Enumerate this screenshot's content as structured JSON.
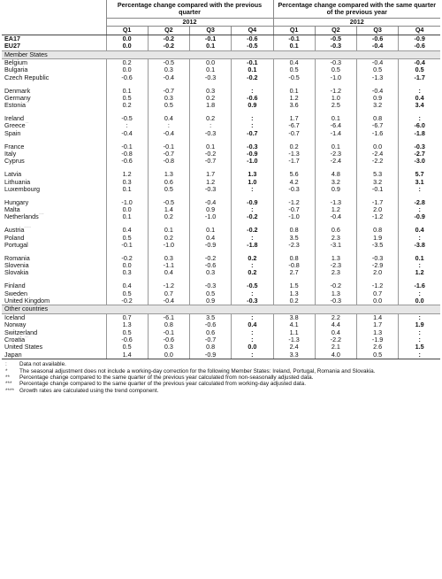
{
  "header": {
    "group1_title": "Percentage change compared with the previous quarter",
    "group2_title": "Percentage change compared with the same quarter of the previous year",
    "year": "2012",
    "quarters": [
      "Q1",
      "Q2",
      "Q3",
      "Q4"
    ]
  },
  "rows": [
    {
      "type": "agg",
      "country": "EA17",
      "qoq": [
        "0.0",
        "-0.2",
        "-0.1",
        "-0.6"
      ],
      "yoy": [
        "-0.1",
        "-0.5",
        "-0.6",
        "-0.9"
      ]
    },
    {
      "type": "agg",
      "country": "EU27",
      "qoq": [
        "0.0",
        "-0.2",
        "0.1",
        "-0.5"
      ],
      "yoy": [
        "0.1",
        "-0.3",
        "-0.4",
        "-0.6"
      ]
    },
    {
      "type": "section",
      "label": "Member States"
    },
    {
      "type": "data",
      "country": "Belgium",
      "qoq": [
        "0.2",
        "-0.5",
        "0.0",
        "-0.1"
      ],
      "yoy": [
        "0.4",
        "-0.3",
        "-0.4",
        "-0.4"
      ]
    },
    {
      "type": "data",
      "country": "Bulgaria",
      "qoq": [
        "0.0",
        "0.3",
        "0.1",
        "0.1"
      ],
      "yoy": [
        "0.5",
        "0.5",
        "0.5",
        "0.5"
      ]
    },
    {
      "type": "data",
      "country": "Czech Republic",
      "qoq": [
        "-0.6",
        "-0.4",
        "-0.3",
        "-0.2"
      ],
      "yoy": [
        "-0.5",
        "-1.0",
        "-1.3",
        "-1.7"
      ]
    },
    {
      "type": "spacer"
    },
    {
      "type": "data",
      "country": "Denmark",
      "qoq": [
        "0.1",
        "-0.7",
        "0.3",
        ":"
      ],
      "yoy": [
        "0.1",
        "-1.2",
        "-0.4",
        ":"
      ]
    },
    {
      "type": "data",
      "country": "Germany",
      "qoq": [
        "0.5",
        "0.3",
        "0.2",
        "-0.6"
      ],
      "yoy": [
        "1.2",
        "1.0",
        "0.9",
        "0.4"
      ]
    },
    {
      "type": "data",
      "country": "Estonia",
      "mark": "**",
      "qoq": [
        "0.2",
        "0.5",
        "1.8",
        "0.9"
      ],
      "yoy": [
        "3.6",
        "2.5",
        "3.2",
        "3.4"
      ]
    },
    {
      "type": "spacer"
    },
    {
      "type": "data",
      "country": "Ireland",
      "qoq": [
        "-0.5",
        "0.4",
        "0.2",
        ":"
      ],
      "yoy": [
        "1.7",
        "0.1",
        "0.8",
        ":"
      ]
    },
    {
      "type": "data",
      "country": "Greece",
      "mark": "**",
      "qoq": [
        ":",
        ":",
        ":",
        ":"
      ],
      "yoy": [
        "-6.7",
        "-6.4",
        "-6.7",
        "-6.0"
      ]
    },
    {
      "type": "data",
      "country": "Spain",
      "qoq": [
        "-0.4",
        "-0.4",
        "-0.3",
        "-0.7"
      ],
      "yoy": [
        "-0.7",
        "-1.4",
        "-1.6",
        "-1.8"
      ]
    },
    {
      "type": "spacer"
    },
    {
      "type": "data",
      "country": "France",
      "qoq": [
        "-0.1",
        "-0.1",
        "0.1",
        "-0.3"
      ],
      "yoy": [
        "0.2",
        "0.1",
        "0.0",
        "-0.3"
      ]
    },
    {
      "type": "data",
      "country": "Italy",
      "qoq": [
        "-0.8",
        "-0.7",
        "-0.2",
        "-0.9"
      ],
      "yoy": [
        "-1.3",
        "-2.3",
        "-2.4",
        "-2.7"
      ]
    },
    {
      "type": "data",
      "country": "Cyprus",
      "qoq": [
        "-0.6",
        "-0.8",
        "-0.7",
        "-1.0"
      ],
      "yoy": [
        "-1.7",
        "-2.4",
        "-2.2",
        "-3.0"
      ]
    },
    {
      "type": "spacer"
    },
    {
      "type": "data",
      "country": "Latvia",
      "qoq": [
        "1.2",
        "1.3",
        "1.7",
        "1.3"
      ],
      "yoy": [
        "5.6",
        "4.8",
        "5.3",
        "5.7"
      ]
    },
    {
      "type": "data",
      "country": "Lithuania",
      "qoq": [
        "0.3",
        "0.6",
        "1.2",
        "1.0"
      ],
      "yoy": [
        "4.2",
        "3.2",
        "3.2",
        "3.1"
      ]
    },
    {
      "type": "data",
      "country": "Luxembourg",
      "qoq": [
        "0.1",
        "0.5",
        "-0.3",
        ":"
      ],
      "yoy": [
        "-0.3",
        "0.9",
        "-0.1",
        ":"
      ]
    },
    {
      "type": "spacer"
    },
    {
      "type": "data",
      "country": "Hungary",
      "qoq": [
        "-1.0",
        "-0.5",
        "-0.4",
        "-0.9"
      ],
      "yoy": [
        "-1.2",
        "-1.3",
        "-1.7",
        "-2.8"
      ]
    },
    {
      "type": "data",
      "country": "Malta",
      "qoq": [
        "0.0",
        "1.4",
        "0.9",
        ":"
      ],
      "yoy": [
        "-0.7",
        "1.2",
        "2.0",
        ":"
      ]
    },
    {
      "type": "data",
      "country": "Netherlands",
      "mark": "***",
      "qoq": [
        "0.1",
        "0.2",
        "-1.0",
        "-0.2"
      ],
      "yoy": [
        "-1.0",
        "-0.4",
        "-1.2",
        "-0.9"
      ]
    },
    {
      "type": "spacer"
    },
    {
      "type": "data",
      "country": "Austria",
      "mark": "****",
      "qoq": [
        "0.4",
        "0.1",
        "0.1",
        "-0.2"
      ],
      "yoy": [
        "0.8",
        "0.6",
        "0.8",
        "0.4"
      ]
    },
    {
      "type": "data",
      "country": "Poland",
      "qoq": [
        "0.5",
        "0.2",
        "0.4",
        ":"
      ],
      "yoy": [
        "3.5",
        "2.3",
        "1.9",
        ":"
      ]
    },
    {
      "type": "data",
      "country": "Portugal",
      "qoq": [
        "-0.1",
        "-1.0",
        "-0.9",
        "-1.8"
      ],
      "yoy": [
        "-2.3",
        "-3.1",
        "-3.5",
        "-3.8"
      ]
    },
    {
      "type": "spacer"
    },
    {
      "type": "data",
      "country": "Romania",
      "qoq": [
        "-0.2",
        "0.3",
        "-0.2",
        "0.2"
      ],
      "yoy": [
        "0.8",
        "1.3",
        "-0.3",
        "0.1"
      ]
    },
    {
      "type": "data",
      "country": "Slovenia",
      "qoq": [
        "0.0",
        "-1.1",
        "-0.6",
        ":"
      ],
      "yoy": [
        "-0.8",
        "-2.3",
        "-2.9",
        ":"
      ]
    },
    {
      "type": "data",
      "country": "Slovakia",
      "qoq": [
        "0.3",
        "0.4",
        "0.3",
        "0.2"
      ],
      "yoy": [
        "2.7",
        "2.3",
        "2.0",
        "1.2"
      ]
    },
    {
      "type": "spacer"
    },
    {
      "type": "data",
      "country": "Finland",
      "qoq": [
        "0.4",
        "-1.2",
        "-0.3",
        "-0.5"
      ],
      "yoy": [
        "1.5",
        "-0.2",
        "-1.2",
        "-1.6"
      ]
    },
    {
      "type": "data",
      "country": "Sweden",
      "qoq": [
        "0.5",
        "0.7",
        "0.5",
        ":"
      ],
      "yoy": [
        "1.3",
        "1.3",
        "0.7",
        ":"
      ]
    },
    {
      "type": "data",
      "country": "United Kingdom",
      "qoq": [
        "-0.2",
        "-0.4",
        "0.9",
        "-0.3"
      ],
      "yoy": [
        "0.2",
        "-0.3",
        "0.0",
        "0.0"
      ]
    },
    {
      "type": "section",
      "label": "Other countries"
    },
    {
      "type": "data",
      "country": "Iceland",
      "qoq": [
        "0.7",
        "-6.1",
        "3.5",
        ":"
      ],
      "yoy": [
        "3.8",
        "2.2",
        "1.4",
        ":"
      ]
    },
    {
      "type": "data",
      "country": "Norway",
      "qoq": [
        "1.3",
        "0.8",
        "-0.6",
        "0.4"
      ],
      "yoy": [
        "4.1",
        "4.4",
        "1.7",
        "1.9"
      ]
    },
    {
      "type": "data",
      "country": "Switzerland",
      "qoq": [
        "0.5",
        "-0.1",
        "0.6",
        ":"
      ],
      "yoy": [
        "1.1",
        "0.4",
        "1.3",
        ":"
      ]
    },
    {
      "type": "data",
      "country": "Croatia",
      "mark": "**",
      "qoq": [
        "-0.6",
        "-0.6",
        "-0.7",
        ":"
      ],
      "yoy": [
        "-1.3",
        "-2.2",
        "-1.9",
        ":"
      ]
    },
    {
      "type": "data",
      "country": "United States",
      "qoq": [
        "0.5",
        "0.3",
        "0.8",
        "0.0"
      ],
      "yoy": [
        "2.4",
        "2.1",
        "2.6",
        "1.5"
      ]
    },
    {
      "type": "data",
      "country": "Japan",
      "qoq": [
        "1.4",
        "0.0",
        "-0.9",
        ":"
      ],
      "yoy": [
        "3.3",
        "4.0",
        "0.5",
        ":"
      ]
    }
  ],
  "notes": [
    {
      "mark": ":",
      "text": "Data not available."
    },
    {
      "mark": "*",
      "text": "The seasonal adjustment does not include a working-day correction for the following Member States: Ireland, Portugal, Romania and Slovakia."
    },
    {
      "mark": "**",
      "text": "Percentage change compared to the same quarter of the previous year calculated from non-seasonally adjusted data."
    },
    {
      "mark": "***",
      "text": "Percentage change compared to the same quarter of the previous year calculated from working-day adjusted data."
    },
    {
      "mark": "****",
      "text": "Growth rates are calculated using the trend component."
    }
  ]
}
